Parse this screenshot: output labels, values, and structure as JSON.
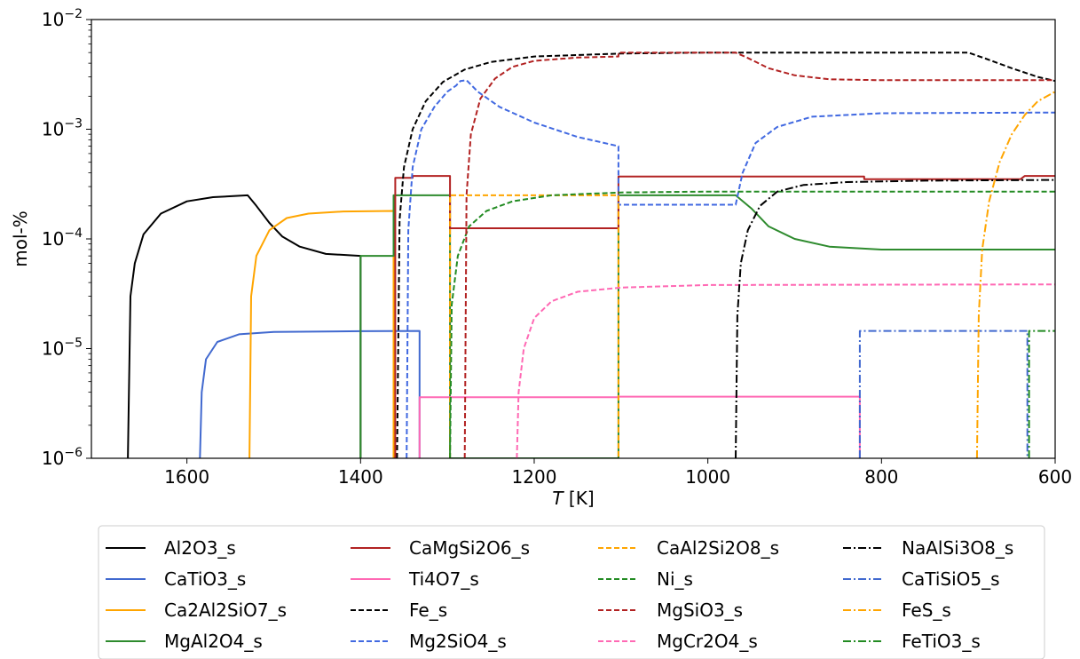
{
  "chart_data": {
    "type": "line",
    "xlabel_italic": "T",
    "xlabel_unit": " [K]",
    "ylabel": "mol-%",
    "xlim": [
      1710,
      600
    ],
    "ylim": [
      1e-06,
      0.01
    ],
    "yscale": "log",
    "x_ticks": [
      1600,
      1400,
      1200,
      1000,
      800,
      600
    ],
    "x_tick_labels": [
      "1600",
      "1400",
      "1200",
      "1000",
      "800",
      "600"
    ],
    "y_ticks": [
      1e-06,
      1e-05,
      0.0001,
      0.001,
      0.01
    ],
    "y_tick_labels": [
      {
        "base": "10",
        "exp": "−6"
      },
      {
        "base": "10",
        "exp": "−5"
      },
      {
        "base": "10",
        "exp": "−4"
      },
      {
        "base": "10",
        "exp": "−3"
      },
      {
        "base": "10",
        "exp": "−2"
      }
    ],
    "legend_position": "below plot, 4 columns",
    "series": [
      {
        "name": "Al2O3_s",
        "color": "#000000",
        "style": "solid",
        "points": [
          [
            1668,
            1e-06
          ],
          [
            1665,
            3e-05
          ],
          [
            1660,
            6e-05
          ],
          [
            1650,
            0.00011
          ],
          [
            1630,
            0.00017
          ],
          [
            1600,
            0.00022
          ],
          [
            1570,
            0.00024
          ],
          [
            1530,
            0.00025
          ],
          [
            1520,
            0.0002
          ],
          [
            1505,
            0.00014
          ],
          [
            1490,
            0.000105
          ],
          [
            1470,
            8.5e-05
          ],
          [
            1440,
            7.3e-05
          ],
          [
            1400,
            7e-05
          ],
          [
            1400,
            1e-06
          ]
        ]
      },
      {
        "name": "CaTiO3_s",
        "color": "#4169cf",
        "style": "solid",
        "points": [
          [
            1585,
            1e-06
          ],
          [
            1583,
            4e-06
          ],
          [
            1578,
            8e-06
          ],
          [
            1565,
            1.15e-05
          ],
          [
            1540,
            1.35e-05
          ],
          [
            1500,
            1.42e-05
          ],
          [
            1400,
            1.44e-05
          ],
          [
            1332,
            1.45e-05
          ],
          [
            1332,
            1e-06
          ]
        ]
      },
      {
        "name": "Ca2Al2SiO7_s",
        "color": "#ffa500",
        "style": "solid",
        "points": [
          [
            1528,
            1e-06
          ],
          [
            1526,
            3e-05
          ],
          [
            1520,
            7e-05
          ],
          [
            1505,
            0.00012
          ],
          [
            1485,
            0.000155
          ],
          [
            1460,
            0.00017
          ],
          [
            1420,
            0.000178
          ],
          [
            1362,
            0.00018
          ],
          [
            1362,
            1e-06
          ]
        ]
      },
      {
        "name": "MgAl2O4_s",
        "color": "#2e8b2e",
        "style": "solid",
        "points": [
          [
            1400,
            1e-06
          ],
          [
            1400,
            7e-05
          ],
          [
            1362,
            7e-05
          ],
          [
            1362,
            0.00025
          ],
          [
            1297,
            0.00025
          ],
          [
            1297,
            1e-06
          ],
          [
            1103,
            1e-06
          ],
          [
            1103,
            0.00025
          ],
          [
            968,
            0.00025
          ],
          [
            950,
            0.00019
          ],
          [
            930,
            0.00013
          ],
          [
            900,
            0.0001
          ],
          [
            860,
            8.5e-05
          ],
          [
            800,
            8e-05
          ],
          [
            600,
            8e-05
          ]
        ]
      },
      {
        "name": "CaMgSi2O6_s",
        "color": "#b22222",
        "style": "solid",
        "points": [
          [
            1360,
            1e-06
          ],
          [
            1360,
            0.00036
          ],
          [
            1340,
            0.00036
          ],
          [
            1340,
            0.000375
          ],
          [
            1297,
            0.000375
          ],
          [
            1297,
            0.000125
          ],
          [
            1103,
            0.000125
          ],
          [
            1103,
            0.00037
          ],
          [
            820,
            0.00037
          ],
          [
            820,
            0.00035
          ],
          [
            640,
            0.00035
          ],
          [
            635,
            0.000375
          ],
          [
            600,
            0.000375
          ]
        ]
      },
      {
        "name": "Ti4O7_s",
        "color": "#ff69b4",
        "style": "solid",
        "points": [
          [
            1332,
            1e-06
          ],
          [
            1332,
            3.6e-06
          ],
          [
            1103,
            3.6e-06
          ],
          [
            1103,
            3.65e-06
          ],
          [
            825,
            3.65e-06
          ],
          [
            825,
            1e-06
          ]
        ]
      },
      {
        "name": "Fe_s",
        "color": "#000000",
        "style": "dashed",
        "points": [
          [
            1358,
            1e-06
          ],
          [
            1355,
            0.00015
          ],
          [
            1350,
            0.00045
          ],
          [
            1340,
            0.001
          ],
          [
            1325,
            0.0018
          ],
          [
            1305,
            0.0027
          ],
          [
            1280,
            0.0035
          ],
          [
            1250,
            0.0041
          ],
          [
            1200,
            0.0046
          ],
          [
            1100,
            0.0049
          ],
          [
            1000,
            0.005
          ],
          [
            700,
            0.005
          ],
          [
            680,
            0.0044
          ],
          [
            650,
            0.0036
          ],
          [
            620,
            0.003
          ],
          [
            600,
            0.00275
          ]
        ]
      },
      {
        "name": "Mg2SiO4_s",
        "color": "#4169e1",
        "style": "dashed",
        "points": [
          [
            1347,
            1e-06
          ],
          [
            1345,
            0.00012
          ],
          [
            1340,
            0.00045
          ],
          [
            1330,
            0.001
          ],
          [
            1315,
            0.0016
          ],
          [
            1300,
            0.0022
          ],
          [
            1290,
            0.0025
          ],
          [
            1285,
            0.00275
          ],
          [
            1278,
            0.0028
          ],
          [
            1265,
            0.0022
          ],
          [
            1240,
            0.0016
          ],
          [
            1200,
            0.00115
          ],
          [
            1150,
            0.00085
          ],
          [
            1103,
            0.0007
          ],
          [
            1103,
            0.000205
          ],
          [
            968,
            0.000205
          ],
          [
            960,
            0.0004
          ],
          [
            945,
            0.00075
          ],
          [
            920,
            0.00105
          ],
          [
            880,
            0.0013
          ],
          [
            800,
            0.0014
          ],
          [
            600,
            0.00142
          ]
        ]
      },
      {
        "name": "CaAl2Si2O8_s",
        "color": "#ffa500",
        "style": "dashed",
        "points": [
          [
            1297,
            1e-06
          ],
          [
            1297,
            0.00025
          ],
          [
            1103,
            0.00025
          ],
          [
            1103,
            1e-06
          ]
        ]
      },
      {
        "name": "Ni_s",
        "color": "#228b22",
        "style": "dashed",
        "points": [
          [
            1297,
            1e-06
          ],
          [
            1295,
            2.5e-05
          ],
          [
            1288,
            7e-05
          ],
          [
            1275,
            0.00013
          ],
          [
            1255,
            0.00018
          ],
          [
            1225,
            0.00022
          ],
          [
            1180,
            0.00025
          ],
          [
            1100,
            0.000265
          ],
          [
            1000,
            0.00027
          ],
          [
            600,
            0.00027
          ]
        ]
      },
      {
        "name": "MgSiO3_s",
        "color": "#b22222",
        "style": "dashed",
        "points": [
          [
            1280,
            1e-06
          ],
          [
            1278,
            0.00025
          ],
          [
            1273,
            0.0009
          ],
          [
            1262,
            0.0019
          ],
          [
            1245,
            0.0029
          ],
          [
            1225,
            0.0037
          ],
          [
            1200,
            0.0042
          ],
          [
            1150,
            0.0045
          ],
          [
            1103,
            0.0046
          ],
          [
            1103,
            0.005
          ],
          [
            968,
            0.005
          ],
          [
            955,
            0.0045
          ],
          [
            930,
            0.0036
          ],
          [
            900,
            0.0031
          ],
          [
            860,
            0.00285
          ],
          [
            800,
            0.0028
          ],
          [
            600,
            0.0028
          ]
        ]
      },
      {
        "name": "MgCr2O4_s",
        "color": "#ff69b4",
        "style": "dashed",
        "points": [
          [
            1220,
            1e-06
          ],
          [
            1218,
            4e-06
          ],
          [
            1212,
            1e-05
          ],
          [
            1200,
            1.9e-05
          ],
          [
            1180,
            2.7e-05
          ],
          [
            1150,
            3.3e-05
          ],
          [
            1100,
            3.6e-05
          ],
          [
            1000,
            3.8e-05
          ],
          [
            600,
            3.85e-05
          ]
        ]
      },
      {
        "name": "NaAlSi3O8_s",
        "color": "#000000",
        "style": "dashdot",
        "points": [
          [
            968,
            1e-06
          ],
          [
            966,
            2e-05
          ],
          [
            962,
            6e-05
          ],
          [
            954,
            0.00012
          ],
          [
            940,
            0.0002
          ],
          [
            920,
            0.00027
          ],
          [
            890,
            0.00031
          ],
          [
            840,
            0.00033
          ],
          [
            750,
            0.00034
          ],
          [
            600,
            0.000345
          ]
        ]
      },
      {
        "name": "CaTiSiO5_s",
        "color": "#4169cf",
        "style": "dashdot",
        "points": [
          [
            825,
            1e-06
          ],
          [
            825,
            1.45e-05
          ],
          [
            632,
            1.45e-05
          ],
          [
            632,
            1e-06
          ]
        ]
      },
      {
        "name": "FeS_s",
        "color": "#ffa500",
        "style": "dashdot",
        "points": [
          [
            690,
            1e-06
          ],
          [
            688,
            2e-05
          ],
          [
            684,
            8e-05
          ],
          [
            676,
            0.00022
          ],
          [
            664,
            0.0005
          ],
          [
            650,
            0.0009
          ],
          [
            635,
            0.00135
          ],
          [
            620,
            0.0018
          ],
          [
            600,
            0.0022
          ]
        ]
      },
      {
        "name": "FeTiO3_s",
        "color": "#228b22",
        "style": "dashdot",
        "points": [
          [
            630,
            1e-06
          ],
          [
            630,
            1.45e-05
          ],
          [
            600,
            1.45e-05
          ]
        ]
      }
    ]
  }
}
